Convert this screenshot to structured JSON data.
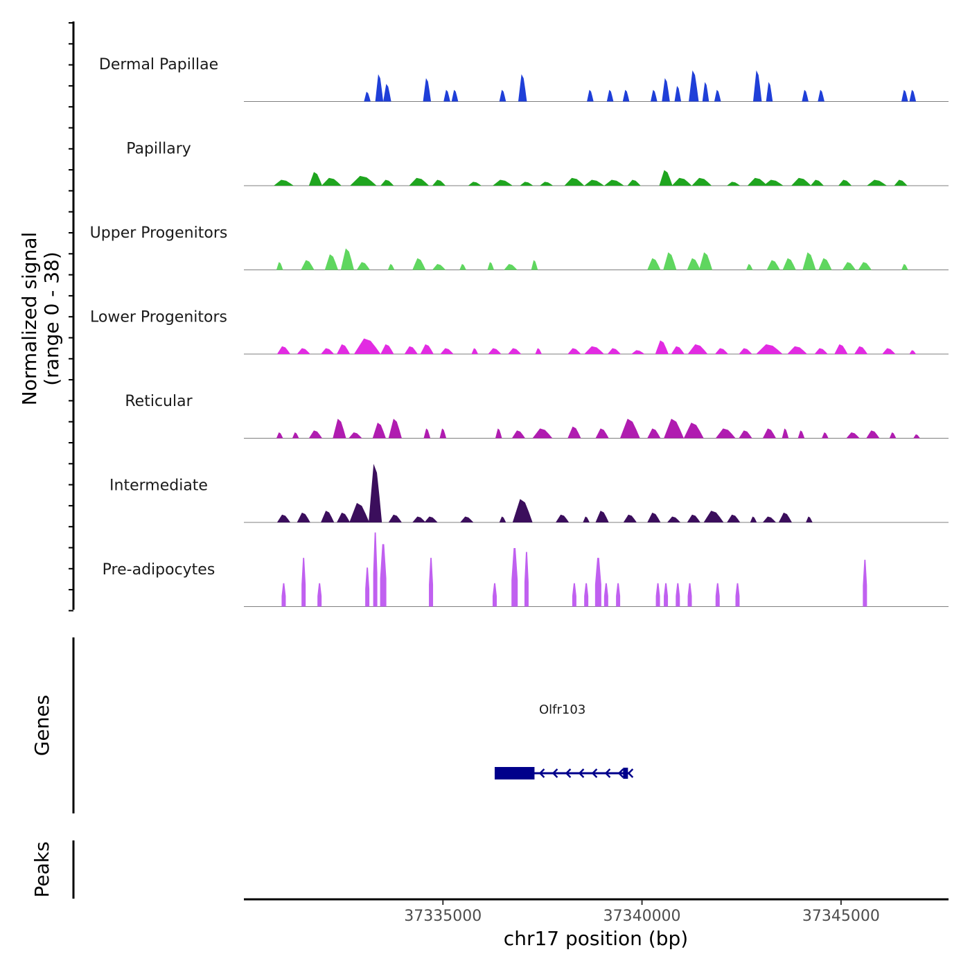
{
  "chart_data": {
    "type": "coverage",
    "y_axis_title_line1": "Normalized signal",
    "y_axis_title_line2": "(range 0 - 38)",
    "ylim": [
      0,
      38
    ],
    "xlabel": "chr17 position (bp)",
    "xlim": [
      37330000,
      37347700
    ],
    "x_ticks": [
      {
        "value": 37335000,
        "label": "37335000"
      },
      {
        "value": 37340000,
        "label": "37340000"
      },
      {
        "value": 37345000,
        "label": "37345000"
      }
    ],
    "tracks": [
      {
        "name": "Dermal Papillae",
        "color": "#1f3fd8",
        "peaks": [
          [
            37333100,
            5,
            1
          ],
          [
            37333400,
            14,
            1.2
          ],
          [
            37333600,
            9,
            1.2
          ],
          [
            37334600,
            12,
            1.2
          ],
          [
            37335100,
            6,
            1
          ],
          [
            37335300,
            6,
            1
          ],
          [
            37336500,
            6,
            1
          ],
          [
            37337000,
            14,
            1.3
          ],
          [
            37338700,
            6,
            1
          ],
          [
            37339200,
            6,
            1
          ],
          [
            37339600,
            6,
            1
          ],
          [
            37340300,
            6,
            1
          ],
          [
            37340600,
            12,
            1.2
          ],
          [
            37340900,
            8,
            1
          ],
          [
            37341300,
            16,
            1.5
          ],
          [
            37341600,
            10,
            1
          ],
          [
            37341900,
            6,
            1
          ],
          [
            37342900,
            16,
            1.3
          ],
          [
            37343200,
            10,
            1
          ],
          [
            37344100,
            6,
            1
          ],
          [
            37344500,
            6,
            1
          ],
          [
            37346600,
            6,
            1
          ],
          [
            37346800,
            6,
            1
          ]
        ]
      },
      {
        "name": "Papillary",
        "color": "#1fa51f",
        "peaks": [
          [
            37331000,
            3,
            3
          ],
          [
            37331800,
            7,
            2
          ],
          [
            37332200,
            4,
            3
          ],
          [
            37333000,
            5,
            4
          ],
          [
            37333600,
            3,
            2
          ],
          [
            37334400,
            4,
            3
          ],
          [
            37334900,
            3,
            2
          ],
          [
            37335800,
            2,
            2
          ],
          [
            37336500,
            3,
            3
          ],
          [
            37337100,
            2,
            2
          ],
          [
            37337600,
            2,
            2
          ],
          [
            37338300,
            4,
            3
          ],
          [
            37338800,
            3,
            3
          ],
          [
            37339300,
            3,
            3
          ],
          [
            37339800,
            3,
            2
          ],
          [
            37340600,
            8,
            2
          ],
          [
            37341000,
            4,
            3
          ],
          [
            37341500,
            4,
            3
          ],
          [
            37342300,
            2,
            2
          ],
          [
            37342900,
            4,
            3
          ],
          [
            37343300,
            3,
            3
          ],
          [
            37344000,
            4,
            3
          ],
          [
            37344400,
            3,
            2
          ],
          [
            37345100,
            3,
            2
          ],
          [
            37345900,
            3,
            3
          ],
          [
            37346500,
            3,
            2
          ]
        ]
      },
      {
        "name": "Upper Progenitors",
        "color": "#5fd65f",
        "peaks": [
          [
            37330900,
            4,
            1
          ],
          [
            37331600,
            5,
            2
          ],
          [
            37332200,
            8,
            2
          ],
          [
            37332600,
            11,
            2
          ],
          [
            37333000,
            4,
            2
          ],
          [
            37333700,
            3,
            1
          ],
          [
            37334400,
            6,
            2
          ],
          [
            37334900,
            3,
            2
          ],
          [
            37335500,
            3,
            1
          ],
          [
            37336200,
            4,
            1
          ],
          [
            37336700,
            3,
            2
          ],
          [
            37337300,
            5,
            1
          ],
          [
            37340300,
            6,
            2
          ],
          [
            37340700,
            9,
            2
          ],
          [
            37341300,
            6,
            2
          ],
          [
            37341600,
            9,
            2
          ],
          [
            37342700,
            3,
            1
          ],
          [
            37343300,
            5,
            2
          ],
          [
            37343700,
            6,
            2
          ],
          [
            37344200,
            9,
            2
          ],
          [
            37344600,
            6,
            2
          ],
          [
            37345200,
            4,
            2
          ],
          [
            37345600,
            4,
            2
          ],
          [
            37346600,
            3,
            1
          ]
        ]
      },
      {
        "name": "Lower Progenitors",
        "color": "#e22be2",
        "peaks": [
          [
            37331000,
            4,
            2
          ],
          [
            37331500,
            3,
            2
          ],
          [
            37332100,
            3,
            2
          ],
          [
            37332500,
            5,
            2
          ],
          [
            37333100,
            8,
            4
          ],
          [
            37333600,
            5,
            2
          ],
          [
            37334200,
            4,
            2
          ],
          [
            37334600,
            5,
            2
          ],
          [
            37335100,
            3,
            2
          ],
          [
            37335800,
            3,
            1
          ],
          [
            37336300,
            3,
            2
          ],
          [
            37336800,
            3,
            2
          ],
          [
            37337400,
            3,
            1
          ],
          [
            37338300,
            3,
            2
          ],
          [
            37338800,
            4,
            3
          ],
          [
            37339300,
            3,
            2
          ],
          [
            37339900,
            2,
            2
          ],
          [
            37340500,
            7,
            2
          ],
          [
            37340900,
            4,
            2
          ],
          [
            37341400,
            5,
            3
          ],
          [
            37342000,
            3,
            2
          ],
          [
            37342600,
            3,
            2
          ],
          [
            37343200,
            5,
            4
          ],
          [
            37343900,
            4,
            3
          ],
          [
            37344500,
            3,
            2
          ],
          [
            37345000,
            5,
            2
          ],
          [
            37345500,
            4,
            2
          ],
          [
            37346200,
            3,
            2
          ],
          [
            37346800,
            2,
            1
          ]
        ]
      },
      {
        "name": "Reticular",
        "color": "#b01cb0",
        "peaks": [
          [
            37330900,
            3,
            1
          ],
          [
            37331300,
            3,
            1
          ],
          [
            37331800,
            4,
            2
          ],
          [
            37332400,
            10,
            2
          ],
          [
            37332800,
            3,
            2
          ],
          [
            37333400,
            8,
            2
          ],
          [
            37333800,
            10,
            2
          ],
          [
            37334600,
            5,
            1
          ],
          [
            37335000,
            5,
            1
          ],
          [
            37336400,
            5,
            1
          ],
          [
            37336900,
            4,
            2
          ],
          [
            37337500,
            5,
            3
          ],
          [
            37338300,
            6,
            2
          ],
          [
            37339000,
            5,
            2
          ],
          [
            37339700,
            10,
            3
          ],
          [
            37340300,
            5,
            2
          ],
          [
            37340800,
            10,
            3
          ],
          [
            37341300,
            8,
            3
          ],
          [
            37342100,
            5,
            3
          ],
          [
            37342600,
            4,
            2
          ],
          [
            37343200,
            5,
            2
          ],
          [
            37343600,
            5,
            1
          ],
          [
            37344000,
            4,
            1
          ],
          [
            37344600,
            3,
            1
          ],
          [
            37345300,
            3,
            2
          ],
          [
            37345800,
            4,
            2
          ],
          [
            37346300,
            3,
            1
          ],
          [
            37346900,
            2,
            1
          ]
        ]
      },
      {
        "name": "Intermediate",
        "color": "#3b0e5c",
        "peaks": [
          [
            37331000,
            4,
            2
          ],
          [
            37331500,
            5,
            2
          ],
          [
            37332100,
            6,
            2
          ],
          [
            37332500,
            5,
            2
          ],
          [
            37332900,
            10,
            3
          ],
          [
            37333300,
            30,
            2
          ],
          [
            37333800,
            4,
            2
          ],
          [
            37334400,
            3,
            2
          ],
          [
            37334700,
            3,
            2
          ],
          [
            37335600,
            3,
            2
          ],
          [
            37336500,
            3,
            1
          ],
          [
            37337000,
            12,
            3
          ],
          [
            37338000,
            4,
            2
          ],
          [
            37338600,
            3,
            1
          ],
          [
            37339000,
            6,
            2
          ],
          [
            37339700,
            4,
            2
          ],
          [
            37340300,
            5,
            2
          ],
          [
            37340800,
            3,
            2
          ],
          [
            37341300,
            4,
            2
          ],
          [
            37341800,
            6,
            3
          ],
          [
            37342300,
            4,
            2
          ],
          [
            37342800,
            3,
            1
          ],
          [
            37343200,
            3,
            2
          ],
          [
            37343600,
            5,
            2
          ],
          [
            37344200,
            3,
            1
          ]
        ]
      },
      {
        "name": "Pre-adipocytes",
        "color": "#c060f0",
        "peaks": [
          [
            37331000,
            12,
            1
          ],
          [
            37331500,
            25,
            1
          ],
          [
            37331900,
            12,
            1
          ],
          [
            37333100,
            20,
            1
          ],
          [
            37333300,
            38,
            1
          ],
          [
            37333500,
            32,
            1.5
          ],
          [
            37334700,
            25,
            1
          ],
          [
            37336300,
            12,
            1
          ],
          [
            37336800,
            30,
            1.5
          ],
          [
            37337100,
            28,
            1
          ],
          [
            37338300,
            12,
            1
          ],
          [
            37338600,
            12,
            1
          ],
          [
            37338900,
            25,
            1.5
          ],
          [
            37339100,
            12,
            1
          ],
          [
            37339400,
            12,
            1
          ],
          [
            37340400,
            12,
            1
          ],
          [
            37340600,
            12,
            1
          ],
          [
            37340900,
            12,
            1
          ],
          [
            37341200,
            12,
            1
          ],
          [
            37341900,
            12,
            1
          ],
          [
            37342400,
            12,
            1
          ],
          [
            37345600,
            24,
            1
          ]
        ]
      }
    ],
    "genes_track_title": "Genes",
    "peaks_track_title": "Peaks",
    "gene": {
      "name": "Olfr103",
      "start": 37336300,
      "end": 37339700,
      "strand": "-",
      "color": "#00008b",
      "exon_start": 37336300,
      "exon_end": 37337300
    }
  }
}
